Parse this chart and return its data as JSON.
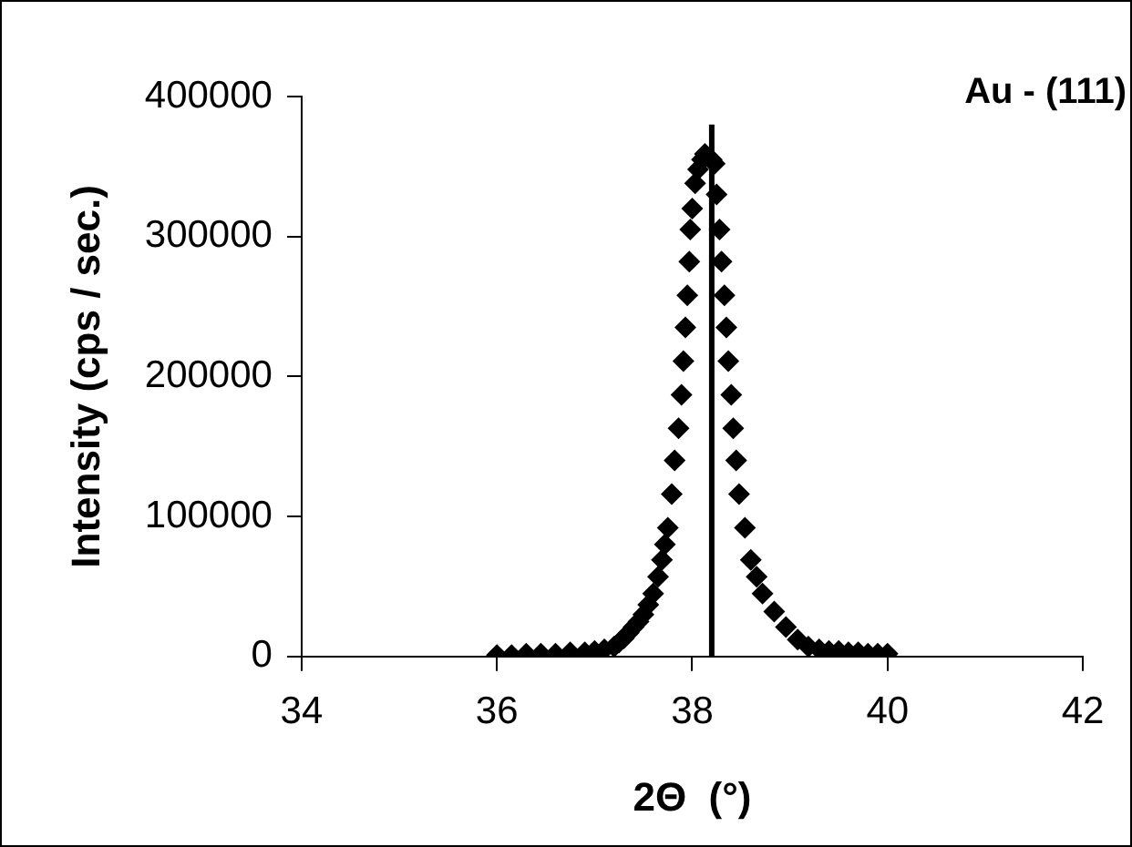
{
  "chart_data": {
    "type": "scatter",
    "xlabel": "2Θ  (°)",
    "ylabel": "Intensity (cps / sec.)",
    "annotations": [
      "Au - (111)"
    ],
    "xlim": [
      34,
      42
    ],
    "xticks": [
      34,
      36,
      38,
      40,
      42
    ],
    "ylim": [
      0,
      400000
    ],
    "yticks": [
      0,
      100000,
      200000,
      300000,
      400000
    ],
    "grid": false,
    "legend": false,
    "series": [
      {
        "type": "scatter",
        "marker": "diamond",
        "color": "#000000",
        "x": [
          36.0,
          36.15,
          36.3,
          36.45,
          36.6,
          36.75,
          36.9,
          37.0,
          37.1,
          37.2,
          37.25,
          37.3,
          37.35,
          37.4,
          37.45,
          37.5,
          37.55,
          37.6,
          37.65,
          37.69,
          37.72,
          37.75,
          37.79,
          37.82,
          37.86,
          37.89,
          37.91,
          37.93,
          37.95,
          37.97,
          37.98,
          38.0,
          38.03,
          38.06,
          38.1,
          38.13,
          38.2,
          38.23,
          38.25,
          38.28,
          38.3,
          38.33,
          38.35,
          38.37,
          38.4,
          38.42,
          38.45,
          38.48,
          38.54,
          38.6,
          38.66,
          38.72,
          38.84,
          38.96,
          39.08,
          39.19,
          39.3,
          39.4,
          39.5,
          39.6,
          39.7,
          39.8,
          39.9,
          40.0
        ],
        "values": [
          1000,
          1000,
          2000,
          2000,
          2000,
          3000,
          3000,
          4000,
          5000,
          7000,
          10000,
          13000,
          17000,
          21000,
          25000,
          30000,
          37000,
          45000,
          57000,
          69000,
          80000,
          92000,
          116000,
          140000,
          163000,
          187000,
          211000,
          235000,
          258000,
          282000,
          305000,
          320000,
          338000,
          348000,
          355000,
          359000,
          355000,
          352000,
          330000,
          305000,
          282000,
          258000,
          235000,
          211000,
          187000,
          163000,
          140000,
          116000,
          92000,
          69000,
          57000,
          45000,
          32000,
          21000,
          12000,
          7000,
          5000,
          4000,
          4000,
          3000,
          3000,
          2000,
          2000,
          2000
        ]
      },
      {
        "type": "line",
        "marker": "none",
        "color": "#000000",
        "x": [
          38.2,
          38.2
        ],
        "values": [
          0,
          380000
        ]
      }
    ]
  }
}
